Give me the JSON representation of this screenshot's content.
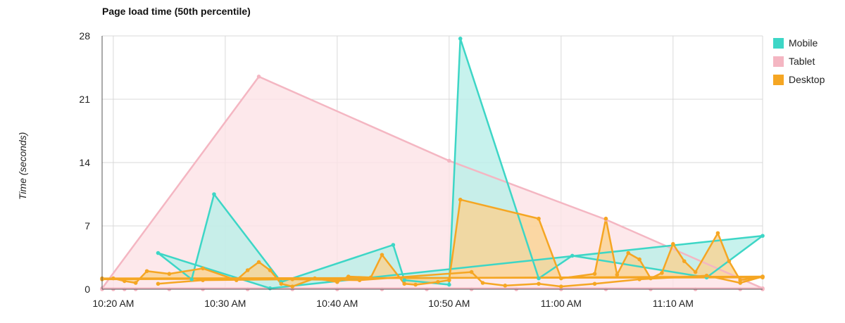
{
  "chart_data": {
    "type": "area",
    "title": "Page load time (50th percentile)",
    "xlabel": "",
    "ylabel": "Time (seconds)",
    "ylim": [
      0,
      28
    ],
    "yticks": [
      "0",
      "7",
      "14",
      "21",
      "28"
    ],
    "xticks": [
      "10:20 AM",
      "10:30 AM",
      "10:40 AM",
      "10:50 AM",
      "11:00 AM",
      "11:10 AM"
    ],
    "xtick_minutes": [
      620,
      630,
      640,
      650,
      660,
      670
    ],
    "xlim_minutes": [
      619,
      678
    ],
    "grid": true,
    "legend_position": "right",
    "series": [
      {
        "name": "Tablet",
        "color": "#f4b6c2",
        "fill": "#fde2e6",
        "points": [
          [
            "10:19 AM",
            0.1
          ],
          [
            "10:33 AM",
            23.5
          ],
          [
            "10:50 AM",
            14.2
          ],
          [
            "11:04 AM",
            7.7
          ],
          [
            "11:18 AM",
            0.1
          ]
        ],
        "baseline": [
          [
            "10:19 AM",
            0
          ],
          [
            "10:20 AM",
            0
          ],
          [
            "10:21 AM",
            0
          ],
          [
            "10:22 AM",
            0
          ],
          [
            "10:25 AM",
            0
          ],
          [
            "10:28 AM",
            0
          ],
          [
            "10:32 AM",
            0
          ],
          [
            "10:36 AM",
            0
          ],
          [
            "10:40 AM",
            0
          ],
          [
            "10:44 AM",
            0
          ],
          [
            "10:48 AM",
            0
          ],
          [
            "10:52 AM",
            0
          ],
          [
            "10:56 AM",
            0
          ],
          [
            "11:00 AM",
            0
          ],
          [
            "11:04 AM",
            0
          ],
          [
            "11:08 AM",
            0
          ],
          [
            "11:12 AM",
            0
          ],
          [
            "11:16 AM",
            0
          ],
          [
            "11:18 AM",
            0
          ]
        ]
      },
      {
        "name": "Mobile",
        "color": "#3dd6c6",
        "fill": "#b9efe8",
        "points": [
          [
            "10:24 AM",
            4.0
          ],
          [
            "10:27 AM",
            1.1
          ],
          [
            "10:29 AM",
            10.5
          ],
          [
            "10:35 AM",
            0.8
          ],
          [
            "10:45 AM",
            4.9
          ],
          [
            "10:46 AM",
            1.0
          ],
          [
            "10:50 AM",
            0.5
          ],
          [
            "10:51 AM",
            27.7
          ],
          [
            "10:58 AM",
            1.2
          ],
          [
            "11:01 AM",
            3.7
          ],
          [
            "11:13 AM",
            1.3
          ],
          [
            "11:18 AM",
            5.9
          ],
          [
            "10:34 AM",
            0.1
          ]
        ]
      },
      {
        "name": "Desktop",
        "color": "#f5a623",
        "fill": "#fad291",
        "points": [
          [
            "10:19 AM",
            1.1
          ],
          [
            "10:20 AM",
            1.2
          ],
          [
            "10:21 AM",
            0.9
          ],
          [
            "10:22 AM",
            0.7
          ],
          [
            "10:23 AM",
            2.0
          ],
          [
            "10:25 AM",
            1.7
          ],
          [
            "10:28 AM",
            2.3
          ],
          [
            "10:31 AM",
            1.0
          ],
          [
            "10:32 AM",
            2.1
          ],
          [
            "10:33 AM",
            3.0
          ],
          [
            "10:34 AM",
            2.1
          ],
          [
            "10:35 AM",
            0.6
          ],
          [
            "10:36 AM",
            0.3
          ],
          [
            "10:38 AM",
            1.2
          ],
          [
            "10:40 AM",
            0.8
          ],
          [
            "10:41 AM",
            1.4
          ],
          [
            "10:43 AM",
            1.3
          ],
          [
            "10:44 AM",
            3.8
          ],
          [
            "10:46 AM",
            0.6
          ],
          [
            "10:47 AM",
            0.5
          ],
          [
            "10:49 AM",
            0.8
          ],
          [
            "10:50 AM",
            1.0
          ],
          [
            "10:51 AM",
            9.9
          ],
          [
            "10:58 AM",
            7.8
          ],
          [
            "11:00 AM",
            1.2
          ],
          [
            "11:03 AM",
            1.7
          ],
          [
            "11:04 AM",
            7.8
          ],
          [
            "11:05 AM",
            1.6
          ],
          [
            "11:06 AM",
            4.0
          ],
          [
            "11:07 AM",
            3.3
          ],
          [
            "11:08 AM",
            1.2
          ],
          [
            "11:09 AM",
            1.8
          ],
          [
            "11:10 AM",
            5.0
          ],
          [
            "11:11 AM",
            3.1
          ],
          [
            "11:12 AM",
            1.9
          ],
          [
            "11:14 AM",
            6.2
          ],
          [
            "11:15 AM",
            3.1
          ],
          [
            "11:16 AM",
            1.0
          ],
          [
            "11:18 AM",
            1.4
          ]
        ],
        "extra_lines": [
          [
            [
              "10:24 AM",
              0.6
            ],
            [
              "10:28 AM",
              1.0
            ],
            [
              "10:36 AM",
              1.1
            ],
            [
              "10:42 AM",
              1.0
            ],
            [
              "10:52 AM",
              1.9
            ],
            [
              "10:53 AM",
              0.7
            ],
            [
              "10:55 AM",
              0.4
            ],
            [
              "10:58 AM",
              0.6
            ],
            [
              "11:00 AM",
              0.3
            ],
            [
              "11:03 AM",
              0.6
            ],
            [
              "11:07 AM",
              1.1
            ],
            [
              "11:13 AM",
              1.5
            ],
            [
              "11:16 AM",
              0.7
            ],
            [
              "11:18 AM",
              1.4
            ]
          ],
          [
            [
              "10:19 AM",
              1.2
            ],
            [
              "11:18 AM",
              1.3
            ]
          ]
        ]
      }
    ],
    "legend": [
      {
        "name": "Mobile",
        "color": "#3dd6c6"
      },
      {
        "name": "Tablet",
        "color": "#f4b6c2"
      },
      {
        "name": "Desktop",
        "color": "#f5a623"
      }
    ]
  }
}
